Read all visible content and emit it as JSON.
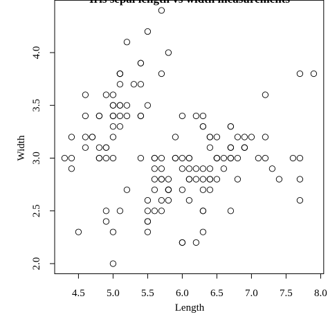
{
  "chart_data": {
    "type": "scatter",
    "title": "Iris sepal length vs width measurements",
    "x_label": "Length",
    "y_label": "Width",
    "xlim": [
      4.156,
      8.044
    ],
    "ylim": [
      1.904,
      4.496
    ],
    "xticks": [
      4.5,
      {
        "value": 5,
        "label": "5.0"
      },
      5.5,
      {
        "value": 6,
        "label": "6.0"
      },
      6.5,
      {
        "value": 7,
        "label": "7.0"
      },
      7.5,
      {
        "value": 8,
        "label": "8.0"
      }
    ],
    "yticks": [
      {
        "value": 2,
        "label": "2.0"
      },
      2.5,
      {
        "value": 3,
        "label": "3.0"
      },
      3.5,
      {
        "value": 4,
        "label": "4.0"
      }
    ],
    "color": "#000000",
    "x": [
      5.1,
      4.9,
      4.7,
      4.6,
      5.0,
      5.4,
      4.6,
      5.0,
      4.4,
      4.9,
      5.4,
      4.8,
      4.8,
      4.3,
      5.8,
      5.7,
      5.4,
      5.1,
      5.7,
      5.1,
      5.4,
      5.1,
      4.6,
      5.1,
      4.8,
      5.0,
      5.0,
      5.2,
      5.2,
      4.7,
      4.8,
      5.4,
      5.2,
      5.5,
      4.9,
      5.0,
      5.5,
      4.9,
      4.4,
      5.1,
      5.0,
      4.5,
      4.4,
      5.0,
      5.1,
      4.8,
      5.1,
      4.6,
      5.3,
      5.0,
      7.0,
      6.4,
      6.9,
      5.5,
      6.5,
      5.7,
      6.3,
      4.9,
      6.6,
      5.2,
      5.0,
      5.9,
      6.0,
      6.1,
      5.6,
      6.7,
      5.6,
      5.8,
      6.2,
      5.6,
      5.9,
      6.1,
      6.3,
      6.1,
      6.4,
      6.6,
      6.8,
      6.7,
      6.0,
      5.7,
      5.5,
      5.5,
      5.8,
      6.0,
      5.4,
      6.0,
      6.7,
      6.3,
      5.6,
      5.5,
      5.5,
      6.1,
      5.8,
      5.0,
      5.6,
      5.7,
      5.7,
      6.2,
      5.1,
      5.7,
      6.3,
      5.8,
      7.1,
      6.3,
      6.5,
      7.6,
      4.9,
      7.3,
      6.7,
      7.2,
      6.5,
      6.4,
      6.8,
      5.7,
      5.8,
      6.4,
      6.5,
      7.7,
      7.7,
      6.0,
      6.9,
      5.6,
      7.7,
      6.3,
      6.7,
      7.2,
      6.2,
      6.1,
      6.4,
      7.2,
      7.4,
      7.9,
      6.4,
      6.3,
      6.1,
      7.7,
      6.3,
      6.4,
      6.0,
      6.9,
      6.7,
      6.9,
      5.8,
      6.8,
      6.7,
      6.7,
      6.3,
      6.5,
      6.2,
      5.9
    ],
    "values": [
      3.5,
      3.0,
      3.2,
      3.1,
      3.6,
      3.9,
      3.4,
      3.4,
      2.9,
      3.1,
      3.7,
      3.4,
      3.0,
      3.0,
      4.0,
      4.4,
      3.9,
      3.5,
      3.8,
      3.8,
      3.4,
      3.7,
      3.6,
      3.3,
      3.4,
      3.0,
      3.4,
      3.5,
      3.4,
      3.2,
      3.1,
      3.4,
      4.1,
      4.2,
      3.1,
      3.2,
      3.5,
      3.6,
      3.0,
      3.4,
      3.5,
      2.3,
      3.2,
      3.5,
      3.8,
      3.0,
      3.8,
      3.2,
      3.7,
      3.3,
      3.2,
      3.2,
      3.1,
      2.3,
      2.8,
      2.8,
      3.3,
      2.4,
      2.9,
      2.7,
      2.0,
      3.0,
      2.2,
      2.9,
      2.9,
      3.1,
      3.0,
      2.7,
      2.2,
      2.5,
      3.2,
      2.8,
      2.5,
      2.8,
      2.9,
      3.0,
      2.8,
      3.0,
      2.9,
      2.6,
      2.4,
      2.4,
      2.7,
      2.7,
      3.0,
      3.4,
      3.1,
      2.3,
      3.0,
      2.5,
      2.6,
      3.0,
      2.6,
      2.3,
      2.7,
      3.0,
      2.9,
      2.9,
      2.5,
      2.8,
      3.3,
      2.7,
      3.0,
      2.9,
      3.0,
      3.0,
      2.5,
      2.9,
      2.5,
      3.6,
      3.2,
      2.7,
      3.0,
      2.5,
      2.8,
      3.2,
      3.0,
      3.8,
      2.6,
      2.2,
      3.2,
      2.8,
      2.8,
      2.7,
      3.3,
      3.2,
      2.8,
      3.0,
      2.8,
      3.0,
      2.8,
      3.8,
      2.8,
      2.8,
      2.6,
      3.0,
      3.4,
      3.1,
      3.0,
      3.1,
      3.1,
      3.1,
      2.7,
      3.2,
      3.3,
      3.0,
      2.5,
      3.0,
      3.4,
      3.0
    ]
  }
}
